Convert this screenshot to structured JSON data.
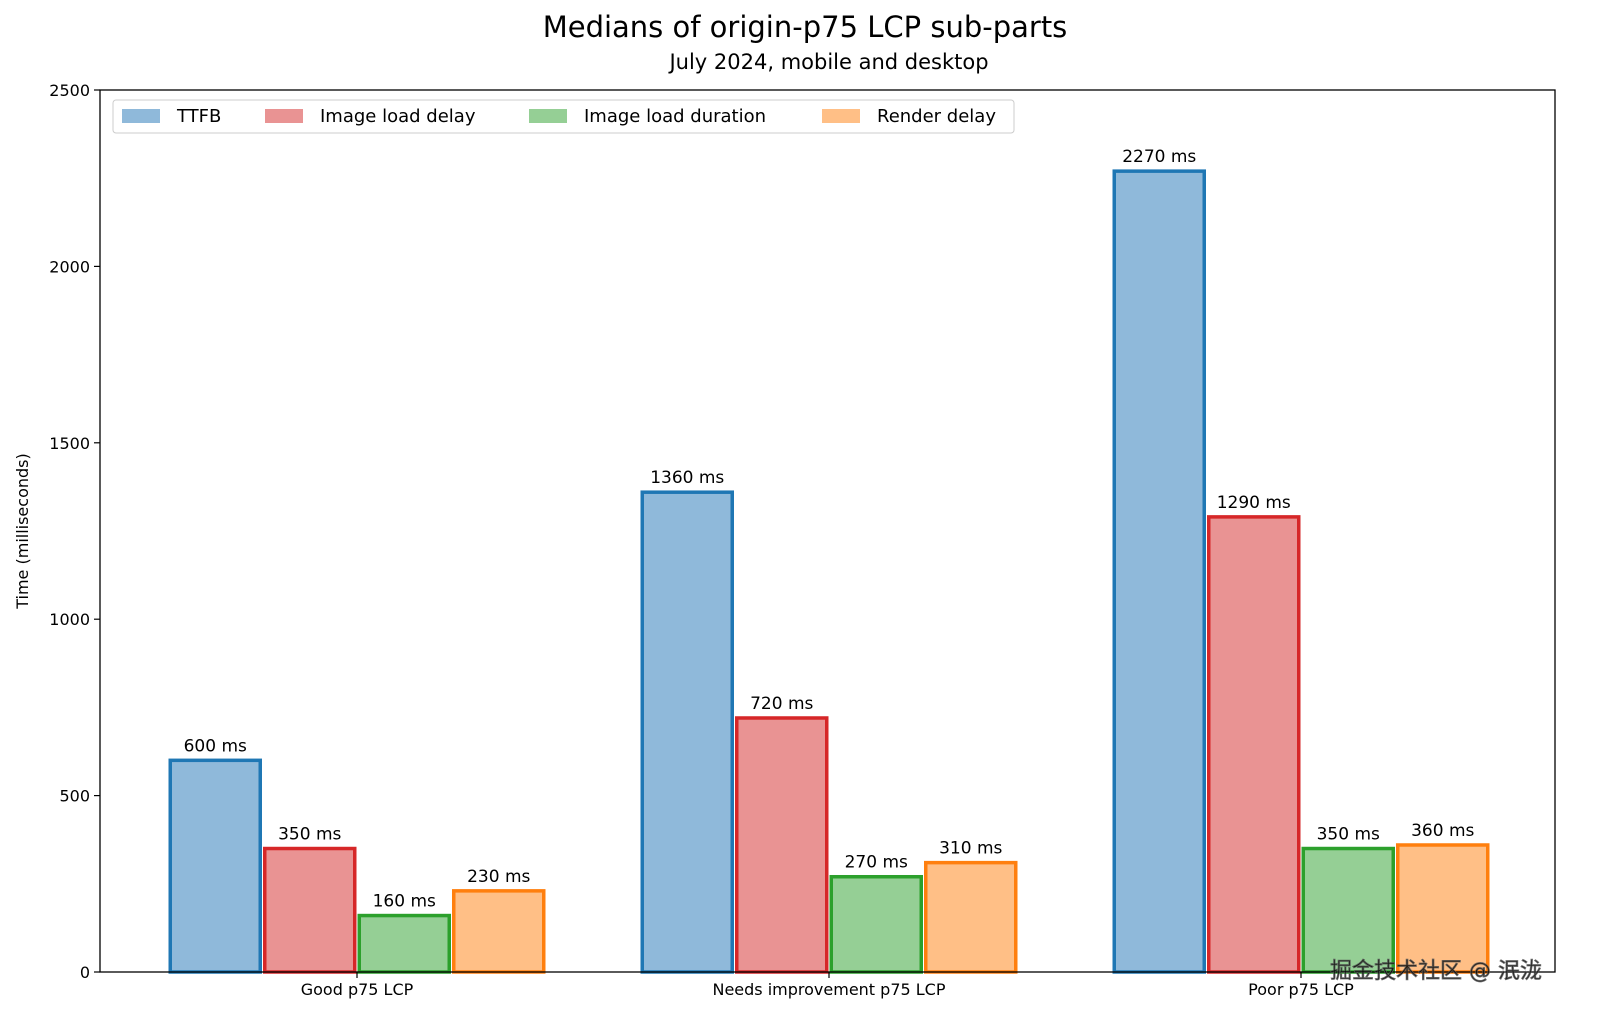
{
  "chart_data": {
    "type": "bar",
    "title": "Medians of origin-p75 LCP sub-parts",
    "subtitle": "July 2024, mobile and desktop",
    "xlabel": "",
    "ylabel": "Time (milliseconds)",
    "ylim": [
      0,
      2500
    ],
    "yticks": [
      "0",
      "500",
      "1000",
      "1500",
      "2000",
      "2500"
    ],
    "categories": [
      "Good p75 LCP",
      "Needs improvement p75 LCP",
      "Poor p75 LCP"
    ],
    "series": [
      {
        "name": "TTFB",
        "values": [
          600,
          1360,
          2270
        ],
        "labels": [
          "600 ms",
          "1360 ms",
          "2270 ms"
        ],
        "fill": "#8fb9da",
        "edge": "#1f77b4"
      },
      {
        "name": "Image load delay",
        "values": [
          350,
          720,
          1290
        ],
        "labels": [
          "350 ms",
          "720 ms",
          "1290 ms"
        ],
        "fill": "#e99393",
        "edge": "#d62728"
      },
      {
        "name": "Image load duration",
        "values": [
          160,
          270,
          350
        ],
        "labels": [
          "160 ms",
          "270 ms",
          "350 ms"
        ],
        "fill": "#95cf95",
        "edge": "#2ca02c"
      },
      {
        "name": "Render delay",
        "values": [
          230,
          310,
          360
        ],
        "labels": [
          "230 ms",
          "310 ms",
          "360 ms"
        ],
        "fill": "#ffbf86",
        "edge": "#ff7f0e"
      }
    ],
    "legend_position": "top-left",
    "grid": false
  },
  "watermark": "掘金技术社区 @ 泯泷"
}
